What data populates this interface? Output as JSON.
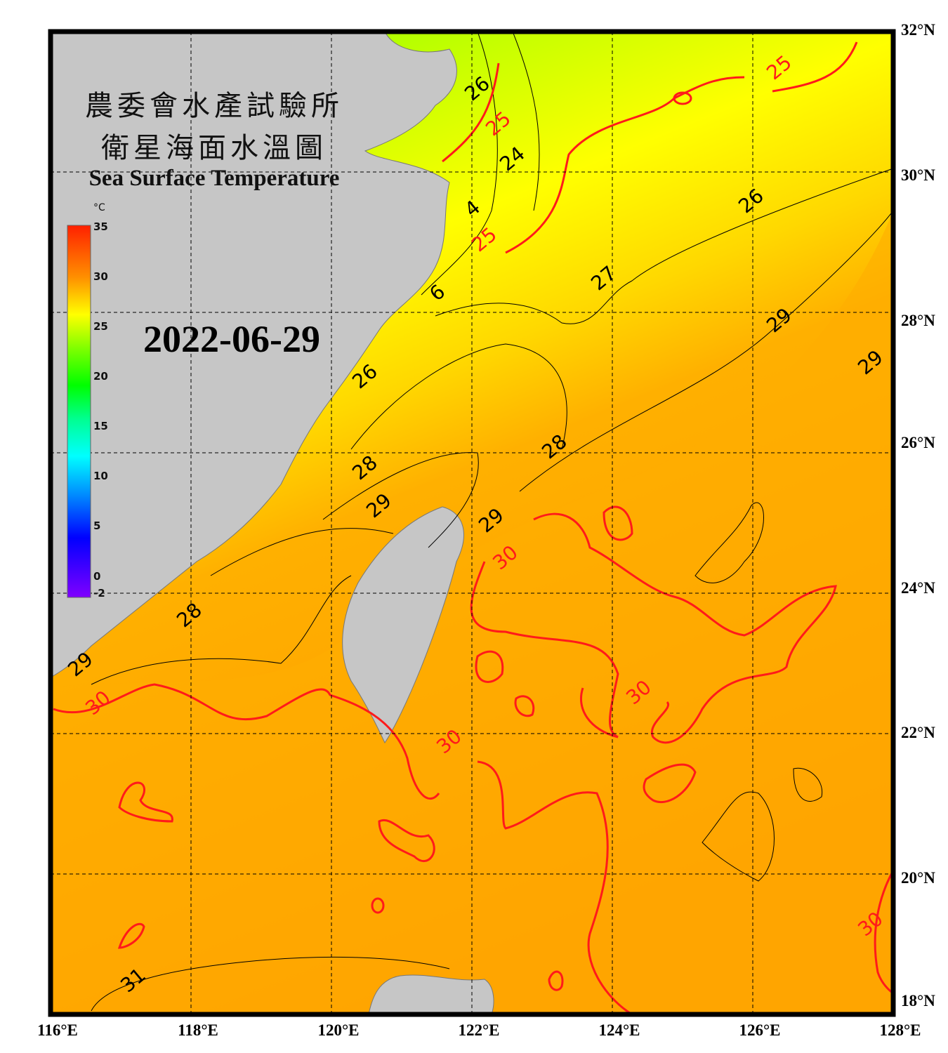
{
  "title": {
    "line1": "農委會水產試驗所",
    "line2": "衛星海面水溫圖",
    "english": "Sea Surface Temperature"
  },
  "date": "2022-06-29",
  "colorbar": {
    "unit": "°C",
    "ticks": [
      "35",
      "30",
      "25",
      "20",
      "15",
      "10",
      "5",
      "0",
      "-2"
    ],
    "range": [
      -2,
      35
    ]
  },
  "axes": {
    "lat_labels": [
      "32°N",
      "30°N",
      "28°N",
      "26°N",
      "24°N",
      "22°N",
      "20°N",
      "18°N"
    ],
    "lon_labels": [
      "116°E",
      "118°E",
      "120°E",
      "122°E",
      "124°E",
      "126°E",
      "128°E"
    ],
    "lon_range": [
      116,
      128
    ],
    "lat_range": [
      18,
      32
    ],
    "grid": "dashed every 2°"
  },
  "contour_labels": [
    {
      "text": "26",
      "lon": 122.0,
      "lat": 31.0,
      "color": "black"
    },
    {
      "text": "25",
      "lon": 122.3,
      "lat": 31.1,
      "color": "red"
    },
    {
      "text": "24",
      "lon": 122.5,
      "lat": 30.6,
      "color": "black"
    },
    {
      "text": "4",
      "lon": 122.0,
      "lat": 29.35,
      "color": "black"
    },
    {
      "text": "25",
      "lon": 122.1,
      "lat": 28.85,
      "color": "red"
    },
    {
      "text": "6",
      "lon": 121.5,
      "lat": 28.15,
      "color": "black"
    },
    {
      "text": "25",
      "lon": 126.3,
      "lat": 31.3,
      "color": "red"
    },
    {
      "text": "26",
      "lon": 125.9,
      "lat": 29.4,
      "color": "black"
    },
    {
      "text": "27",
      "lon": 123.8,
      "lat": 28.3,
      "color": "black"
    },
    {
      "text": "29",
      "lon": 126.3,
      "lat": 27.7,
      "color": "black"
    },
    {
      "text": "29",
      "lon": 127.6,
      "lat": 27.1,
      "color": "black"
    },
    {
      "text": "26",
      "lon": 120.4,
      "lat": 26.9,
      "color": "black"
    },
    {
      "text": "28",
      "lon": 123.1,
      "lat": 25.9,
      "color": "black"
    },
    {
      "text": "28",
      "lon": 120.4,
      "lat": 25.6,
      "color": "black"
    },
    {
      "text": "29",
      "lon": 120.6,
      "lat": 25.3,
      "color": "black"
    },
    {
      "text": "29",
      "lon": 122.2,
      "lat": 24.85,
      "color": "black"
    },
    {
      "text": "30",
      "lon": 122.4,
      "lat": 24.8,
      "color": "red"
    },
    {
      "text": "28",
      "lon": 117.9,
      "lat": 23.5,
      "color": "black"
    },
    {
      "text": "29",
      "lon": 116.35,
      "lat": 22.8,
      "color": "black"
    },
    {
      "text": "30",
      "lon": 116.6,
      "lat": 22.25,
      "color": "red"
    },
    {
      "text": "30",
      "lon": 124.3,
      "lat": 22.4,
      "color": "red"
    },
    {
      "text": "30",
      "lon": 121.6,
      "lat": 21.7,
      "color": "red"
    },
    {
      "text": "30",
      "lon": 127.6,
      "lat": 19.1,
      "color": "red"
    },
    {
      "text": "31",
      "lon": 117.1,
      "lat": 18.3,
      "color": "black"
    }
  ],
  "colors": {
    "land": "#c6c6c6",
    "frame": "#000000",
    "contour_30_25": "#ff1a1a",
    "contour_other": "#000000",
    "cold": "#80ff00",
    "mid": "#ffff00",
    "warm": "#ffa000"
  }
}
